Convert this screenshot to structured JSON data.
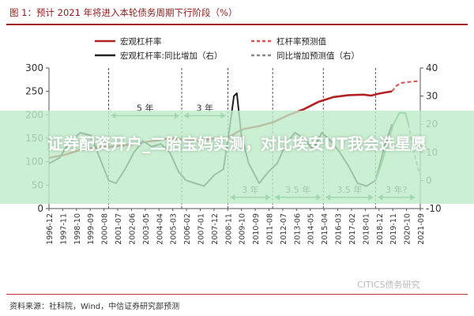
{
  "title": "图 1：预计 2021 年将进入本轮债务周期下行阶段（%）",
  "overlay": {
    "text": "证券配资开户_二胎宝妈实测，对比埃安UT我会选星愿"
  },
  "watermark": "CITICS债务研究",
  "source": "资料来源：社科院，Wind，中信证券研究部预测",
  "chart_data": {
    "type": "line",
    "title": "图 1：预计 2021 年将进入本轮债务周期下行阶段（%）",
    "x_tick_labels": [
      "1996-12",
      "1997-11",
      "1998-10",
      "1999-09",
      "2000-08",
      "2001-07",
      "2002-06",
      "2003-05",
      "2004-04",
      "2005-03",
      "2006-02",
      "2007-01",
      "2007-12",
      "2008-11",
      "2009-10",
      "2010-09",
      "2011-08",
      "2012-07",
      "2013-06",
      "2014-05",
      "2015-04",
      "2016-03",
      "2017-02",
      "2018-01",
      "2018-12",
      "2019-11",
      "2020-10",
      "2021-09"
    ],
    "y_left": {
      "ticks": [
        0,
        50,
        100,
        150,
        200,
        250,
        300
      ],
      "ylim": [
        0,
        300
      ]
    },
    "y_right": {
      "ticks": [
        -10,
        0,
        10,
        20,
        30,
        40
      ],
      "ylim": [
        -10,
        40
      ]
    },
    "legend": {
      "position": "top",
      "items": [
        {
          "label": "宏观杠杆率",
          "color": "#b22222",
          "style": "solid"
        },
        {
          "label": "杠杆率预测值",
          "color": "#d9534f",
          "style": "dashed"
        },
        {
          "label": "宏观杠杆率:同比增加（右）",
          "color": "#222222",
          "style": "solid"
        },
        {
          "label": "同比增加预测值（右）",
          "color": "#888888",
          "style": "dashed"
        }
      ]
    },
    "series": [
      {
        "name": "宏观杠杆率",
        "axis": "left",
        "color": "#b22222",
        "style": "solid",
        "x": [
          1996.9,
          1998,
          1999,
          2000,
          2001,
          2002,
          2003,
          2004,
          2005,
          2006,
          2007,
          2008,
          2008.9,
          2009.5,
          2010,
          2011,
          2012,
          2013,
          2014,
          2015,
          2016,
          2017,
          2018,
          2018.5,
          2019,
          2019.5,
          2019.9
        ],
        "values": [
          108,
          115,
          125,
          130,
          132,
          135,
          140,
          145,
          150,
          148,
          145,
          150,
          150,
          163,
          170,
          176,
          185,
          200,
          212,
          228,
          238,
          242,
          243,
          241,
          245,
          248,
          250
        ]
      },
      {
        "name": "杠杆率预测值",
        "axis": "left",
        "color": "#d9534f",
        "style": "dashed",
        "x": [
          2019.9,
          2020.2,
          2020.5,
          2021,
          2021.7
        ],
        "values": [
          250,
          262,
          268,
          270,
          272
        ]
      },
      {
        "name": "宏观杠杆率:同比增加（右）",
        "axis": "right",
        "color": "#222222",
        "style": "solid",
        "x": [
          1996.9,
          1997.6,
          1998.2,
          1999,
          1999.7,
          2000.3,
          2000.9,
          2001.4,
          2002,
          2002.6,
          2003.2,
          2003.8,
          2004.4,
          2005,
          2005.6,
          2006.1,
          2006.7,
          2007.3,
          2008,
          2008.6,
          2009,
          2009.3,
          2009.5,
          2009.8,
          2010.3,
          2011,
          2011.6,
          2012.2,
          2012.8,
          2013.4,
          2014,
          2014.6,
          2015.2,
          2015.8,
          2016.4,
          2017,
          2017.6,
          2018.2,
          2018.8,
          2019.4,
          2019.9
        ],
        "values": [
          6,
          8,
          13,
          17,
          16,
          8,
          0,
          -1,
          4,
          10,
          14,
          12,
          13,
          10,
          3,
          0,
          -1,
          -2,
          2,
          4,
          18,
          30,
          31,
          16,
          6,
          -1,
          3,
          6,
          13,
          17,
          15,
          11,
          17,
          14,
          10,
          5,
          -1,
          -2,
          0,
          12,
          20
        ]
      },
      {
        "name": "宏观杠杆率:同比增加（右）",
        "axis": "right",
        "color": "#2e8b57",
        "style": "solid",
        "x": [
          2018.8,
          2019.2,
          2019.6,
          2020,
          2020.4,
          2020.8,
          2021.0
        ],
        "values": [
          0,
          6,
          13,
          20,
          24,
          24,
          20
        ]
      },
      {
        "name": "同比增加预测值（右）",
        "axis": "right",
        "color": "#888888",
        "style": "dashed",
        "x": [
          2021.0,
          2021.3,
          2021.6,
          2021.8
        ],
        "values": [
          20,
          12,
          5,
          2
        ]
      }
    ],
    "annotations": [
      {
        "text": "5 年",
        "x_from": 2000.9,
        "x_to": 2005.8,
        "y_right": 23
      },
      {
        "text": "3 年",
        "x_from": 2005.8,
        "x_to": 2008.9,
        "y_right": 23
      },
      {
        "text": "3 年",
        "x_from": 2008.9,
        "x_to": 2011.9,
        "y_right": -6
      },
      {
        "text": "3.5 年",
        "x_from": 2011.9,
        "x_to": 2015.3,
        "y_right": -6
      },
      {
        "text": "3.5 年",
        "x_from": 2015.3,
        "x_to": 2018.8,
        "y_right": -6
      },
      {
        "text": "3 年?",
        "x_from": 2018.8,
        "x_to": 2021.6,
        "y_right": -6
      }
    ],
    "vlines_x": [
      2000.9,
      2005.8,
      2008.9,
      2011.9,
      2015.3,
      2018.8
    ]
  }
}
